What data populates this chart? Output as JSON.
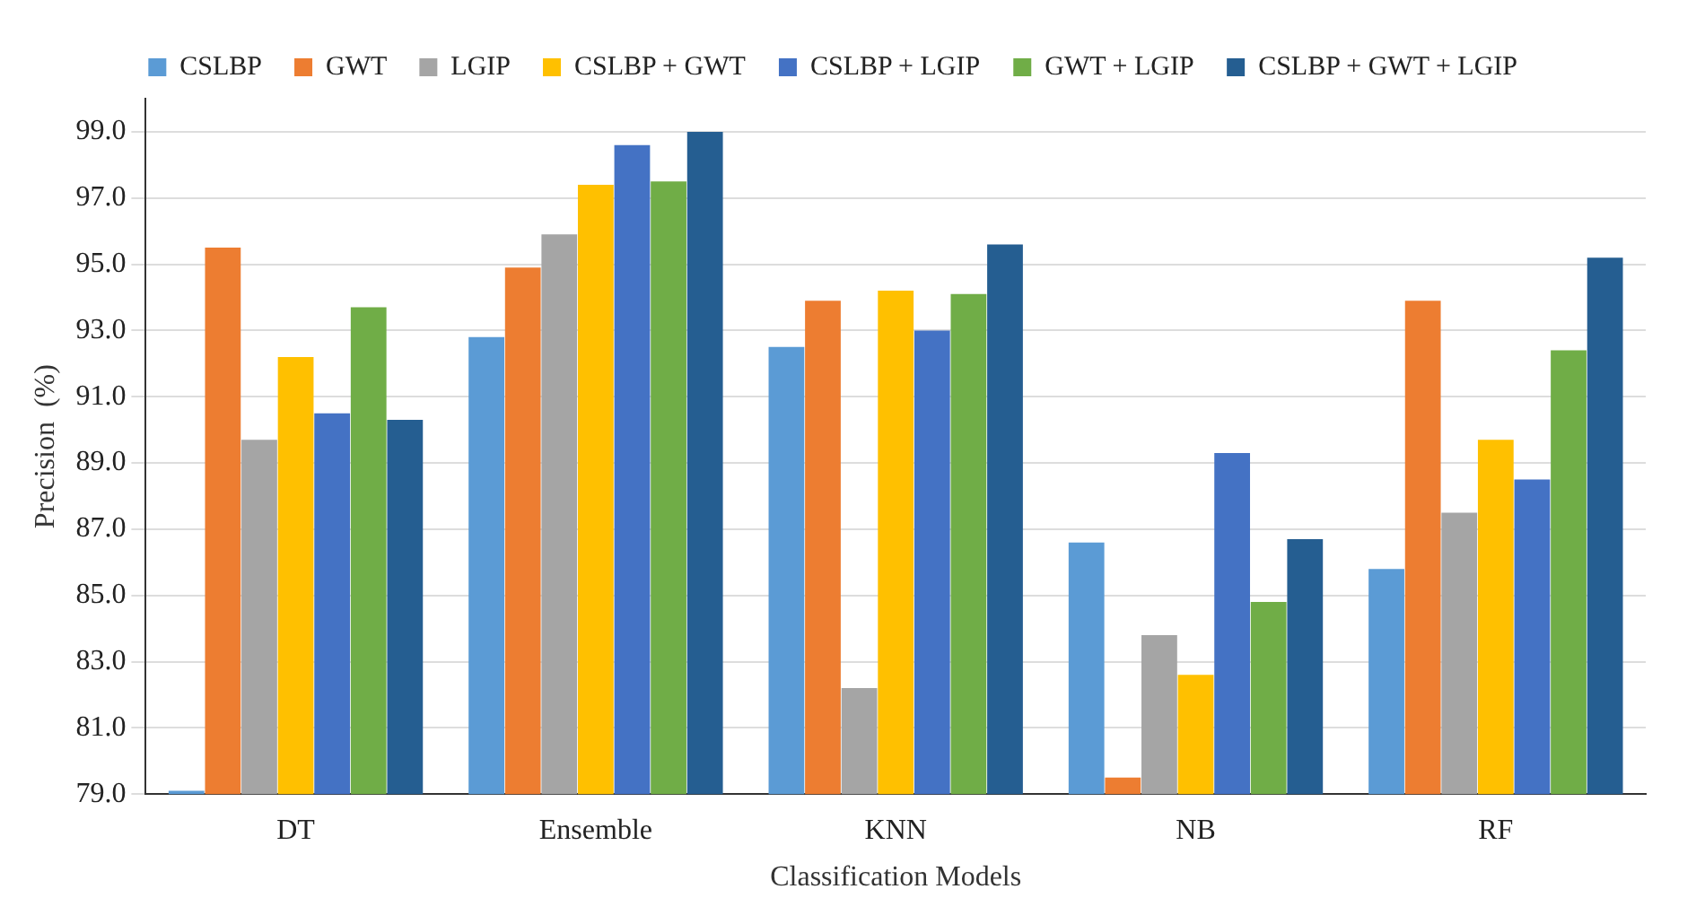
{
  "chart_data": {
    "type": "bar",
    "xlabel": "Classification Models",
    "ylabel": "Precision  (%)",
    "categories": [
      "DT",
      "Ensemble",
      "KNN",
      "NB",
      "RF"
    ],
    "series": [
      {
        "name": "CSLBP",
        "color": "#5b9bd5",
        "values": [
          79.1,
          92.8,
          92.5,
          86.6,
          85.8
        ]
      },
      {
        "name": "GWT",
        "color": "#ed7d31",
        "values": [
          95.5,
          94.9,
          93.9,
          79.5,
          93.9
        ]
      },
      {
        "name": "LGIP",
        "color": "#a5a5a5",
        "values": [
          89.7,
          95.9,
          82.2,
          83.8,
          87.5
        ]
      },
      {
        "name": "CSLBP + GWT",
        "color": "#ffc000",
        "values": [
          92.2,
          97.4,
          94.2,
          82.6,
          89.7
        ]
      },
      {
        "name": "CSLBP + LGIP",
        "color": "#4472c4",
        "values": [
          90.5,
          98.6,
          93.0,
          89.3,
          88.5
        ]
      },
      {
        "name": "GWT + LGIP",
        "color": "#70ad47",
        "values": [
          93.7,
          97.5,
          94.1,
          84.8,
          92.4
        ]
      },
      {
        "name": "CSLBP + GWT + LGIP",
        "color": "#255e91",
        "values": [
          90.3,
          99.0,
          95.6,
          86.7,
          95.2
        ]
      }
    ],
    "ylim": [
      79,
      100
    ],
    "yticks": [
      {
        "value": 79,
        "label": "79.0"
      },
      {
        "value": 81,
        "label": "81.0"
      },
      {
        "value": 83,
        "label": "83.0"
      },
      {
        "value": 85,
        "label": "85.0"
      },
      {
        "value": 87,
        "label": "87.0"
      },
      {
        "value": 89,
        "label": "89.0"
      },
      {
        "value": 91,
        "label": "91.0"
      },
      {
        "value": 93,
        "label": "93.0"
      },
      {
        "value": 95,
        "label": "95.0"
      },
      {
        "value": 97,
        "label": "97.0"
      },
      {
        "value": 99,
        "label": "99.0"
      }
    ],
    "grid": "y",
    "legend": "top"
  }
}
